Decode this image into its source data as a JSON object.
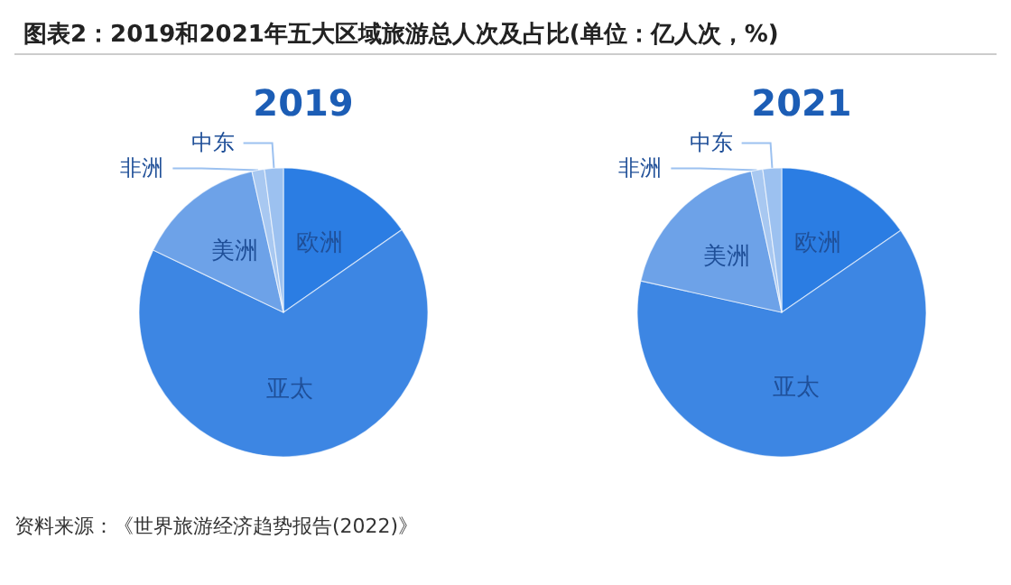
{
  "chart_data": [
    {
      "type": "pie",
      "title": "图表2：2019和2021年五大区域旅游总人次及占比(单位：亿人次，%)",
      "subtitle": "2019",
      "categories": [
        "欧洲",
        "亚太",
        "美洲",
        "非洲",
        "中东"
      ],
      "values": [
        15.3,
        66.8,
        14.4,
        1.4,
        2.1
      ],
      "colors": [
        "#2b7de3",
        "#3d86e3",
        "#6da2e8",
        "#a8c8f1",
        "#9cc1f0"
      ],
      "annotations": [
        "资料来源：《世界旅游经济趋势报告(2022)》"
      ]
    },
    {
      "type": "pie",
      "subtitle": "2021",
      "categories": [
        "欧洲",
        "亚太",
        "美洲",
        "非洲",
        "中东"
      ],
      "values": [
        15.4,
        63.1,
        18.1,
        1.3,
        2.1
      ],
      "colors": [
        "#2b7de3",
        "#3d86e3",
        "#6da2e8",
        "#a8c8f1",
        "#9cc1f0"
      ]
    }
  ]
}
